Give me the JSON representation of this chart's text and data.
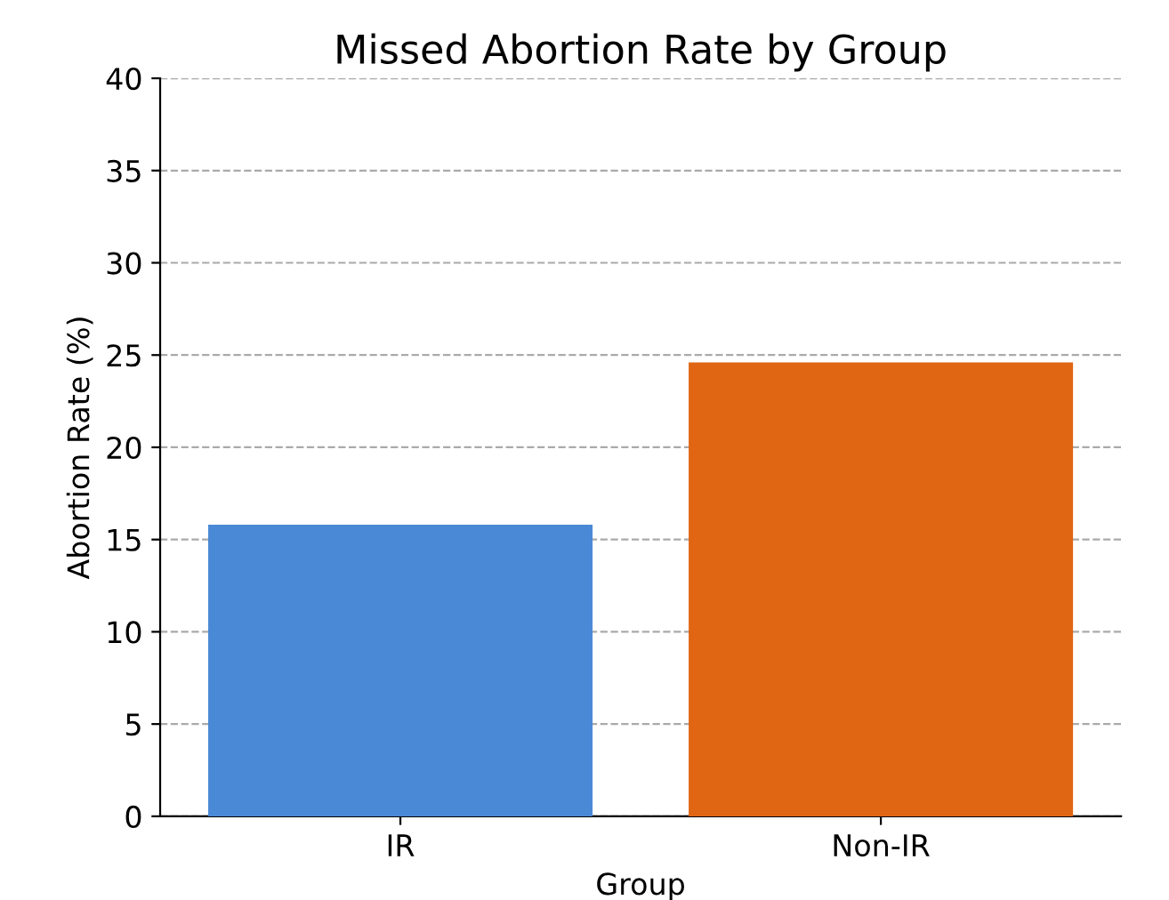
{
  "chart_data": {
    "type": "bar",
    "title": "Missed Abortion Rate by Group",
    "xlabel": "Group",
    "ylabel": "Abortion Rate (%)",
    "categories": [
      "IR",
      "Non-IR"
    ],
    "values": [
      15.8,
      24.6
    ],
    "colors": [
      "#4a89d6",
      "#e06614"
    ],
    "ylim": [
      0,
      40
    ],
    "yticks": [
      0,
      5,
      10,
      15,
      20,
      25,
      30,
      35,
      40
    ],
    "grid": "y",
    "legend": false
  }
}
